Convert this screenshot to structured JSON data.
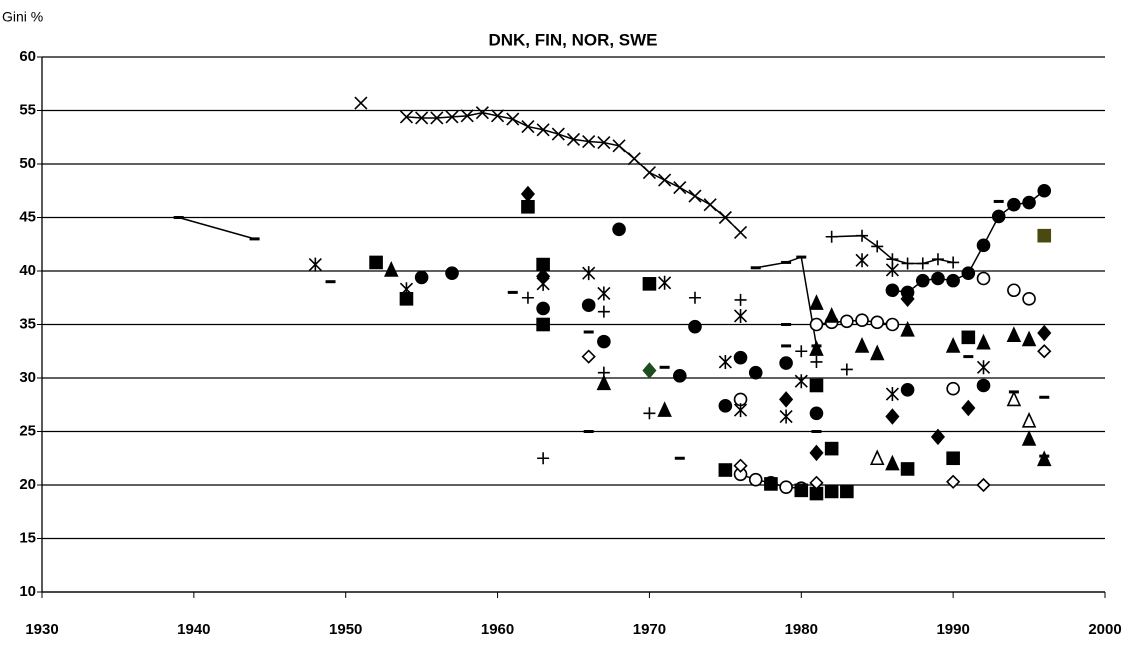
{
  "chart_data": {
    "type": "scatter",
    "title": "DNK, FIN, NOR, SWE",
    "y_label": "Gini %",
    "xlim": [
      1930,
      2000
    ],
    "xticks": [
      1930,
      1940,
      1950,
      1960,
      1970,
      1980,
      1990,
      2000
    ],
    "ylim": [
      10,
      60
    ],
    "yticks": [
      10,
      15,
      20,
      25,
      30,
      35,
      40,
      45,
      50,
      55,
      60
    ],
    "grid": true,
    "series": [
      {
        "marker": "x",
        "color": "#000000",
        "connect": true,
        "x": [
          1951,
          1953,
          1954,
          1955,
          1956,
          1957,
          1958,
          1959,
          1960,
          1961,
          1962,
          1963,
          1964,
          1965,
          1966,
          1967,
          1968,
          1969,
          1970,
          1971,
          1972,
          1973,
          1974,
          1975,
          1976
        ],
        "values": [
          55.7,
          null,
          54.4,
          54.3,
          54.3,
          54.4,
          54.5,
          54.8,
          54.5,
          54.2,
          53.5,
          53.2,
          52.8,
          52.3,
          52.1,
          52.0,
          51.7,
          50.5,
          49.2,
          48.5,
          47.8,
          47.0,
          46.2,
          45.0,
          43.6
        ]
      },
      {
        "marker": "dash",
        "color": "#000000",
        "connect": true,
        "x": [
          1939,
          1944,
          1945,
          1977,
          1979,
          1980,
          1981
        ],
        "values": [
          45,
          43,
          null,
          40.3,
          40.8,
          41.3,
          33
        ]
      },
      {
        "marker": "dash",
        "color": "#000000",
        "connect": false,
        "x": [
          1949,
          1961,
          1966,
          1966,
          1971,
          1972,
          1979,
          1979,
          1981,
          1993,
          1991,
          1994,
          1996,
          1996
        ],
        "values": [
          39,
          38,
          34.3,
          25,
          31,
          22.5,
          35,
          33,
          25,
          46.5,
          32,
          28.7,
          28.2,
          22.7
        ]
      },
      {
        "marker": "circle",
        "color": "#000000",
        "connect": true,
        "x": [
          1986,
          1987,
          1988,
          1989,
          1990,
          1991,
          1992,
          1993,
          1994,
          1995,
          1996
        ],
        "values": [
          38.2,
          38,
          39.1,
          39.3,
          39.1,
          39.8,
          42.4,
          45.1,
          46.2,
          46.4,
          47.5
        ]
      },
      {
        "marker": "circle",
        "color": "#000000",
        "connect": false,
        "x": [
          1955,
          1957,
          1963,
          1966,
          1967,
          1968,
          1973,
          1972,
          1975,
          1976,
          1977,
          1979,
          1981,
          1987,
          1992
        ],
        "values": [
          39.4,
          39.8,
          36.5,
          36.8,
          33.4,
          43.9,
          34.8,
          30.2,
          27.4,
          31.9,
          30.5,
          31.4,
          26.7,
          28.9,
          29.3
        ]
      },
      {
        "marker": "circle-open",
        "color": "#000000",
        "connect": true,
        "x": [
          1976,
          1977,
          1978,
          1979,
          1980,
          1980.5,
          1981,
          1982,
          1983,
          1984,
          1985,
          1986
        ],
        "values": [
          21,
          20.5,
          20.2,
          19.8,
          19.7,
          null,
          35,
          35.2,
          35.3,
          35.4,
          35.2,
          35
        ]
      },
      {
        "marker": "circle-open",
        "color": "#000000",
        "connect": false,
        "x": [
          1990,
          1994,
          1995,
          1976,
          1992
        ],
        "values": [
          29,
          38.2,
          37.4,
          28,
          39.3
        ]
      },
      {
        "marker": "square",
        "color": "#000000",
        "connect": false,
        "x": [
          1952,
          1954,
          1962,
          1963,
          1963,
          1970,
          1975,
          1978,
          1980,
          1981,
          1982,
          1983,
          1981,
          1982,
          1991,
          1990,
          1987
        ],
        "values": [
          40.8,
          37.4,
          46,
          40.6,
          35,
          38.8,
          21.4,
          20.1,
          19.5,
          19.2,
          19.4,
          19.4,
          29.3,
          23.4,
          33.8,
          22.5,
          21.5
        ]
      },
      {
        "marker": "square",
        "color": "#4a4a10",
        "connect": false,
        "x": [
          1996
        ],
        "values": [
          43.3
        ]
      },
      {
        "marker": "triangle",
        "color": "#000000",
        "connect": false,
        "x": [
          1953,
          1967,
          1971,
          1981,
          1982,
          1984,
          1987,
          1990,
          1992,
          1994,
          1995,
          1981,
          1986,
          1995,
          1996,
          1985
        ],
        "values": [
          40.1,
          29.5,
          27,
          37,
          35.8,
          33,
          34.5,
          33,
          33.3,
          34,
          33.6,
          32.7,
          22,
          24.3,
          22.4,
          32.3
        ]
      },
      {
        "marker": "triangle-open",
        "color": "#000000",
        "connect": false,
        "x": [
          1985,
          1994,
          1995
        ],
        "values": [
          22.5,
          28,
          26
        ]
      },
      {
        "marker": "diamond",
        "color": "#000000",
        "connect": false,
        "x": [
          1962,
          1963,
          1979,
          1981,
          1987,
          1986,
          1996,
          1991,
          1989
        ],
        "values": [
          47.2,
          39.5,
          28,
          23,
          37.4,
          26.4,
          34.2,
          27.2,
          24.5
        ]
      },
      {
        "marker": "diamond",
        "color": "#1e4d1e",
        "connect": false,
        "x": [
          1970
        ],
        "values": [
          30.7
        ]
      },
      {
        "marker": "diamond-open",
        "color": "#000000",
        "connect": false,
        "x": [
          1966,
          1976,
          1981,
          1996,
          1992,
          1990
        ],
        "values": [
          32,
          21.8,
          20.2,
          32.5,
          20,
          20.3
        ]
      },
      {
        "marker": "plus",
        "color": "#000000",
        "connect": true,
        "x": [
          1982,
          1984,
          1985,
          1986,
          1987,
          1988,
          1989,
          1990
        ],
        "values": [
          43.2,
          43.3,
          42.3,
          41.1,
          40.7,
          40.7,
          41.1,
          40.8
        ]
      },
      {
        "marker": "plus",
        "color": "#000000",
        "connect": false,
        "x": [
          1962,
          1963,
          1967,
          1967,
          1970,
          1973,
          1976,
          1980,
          1981,
          1983
        ],
        "values": [
          37.5,
          22.5,
          36.2,
          30.5,
          26.7,
          37.5,
          37.3,
          32.5,
          31.5,
          30.8
        ]
      },
      {
        "marker": "star",
        "color": "#000000",
        "connect": false,
        "x": [
          1948,
          1954,
          1963,
          1966,
          1967,
          1971,
          1975,
          1976,
          1976,
          1979,
          1980,
          1984,
          1986,
          1992,
          1986
        ],
        "values": [
          40.6,
          38.3,
          38.8,
          39.8,
          37.9,
          38.9,
          31.5,
          35.8,
          27,
          26.4,
          29.7,
          41,
          40.1,
          31,
          28.5
        ]
      }
    ]
  }
}
